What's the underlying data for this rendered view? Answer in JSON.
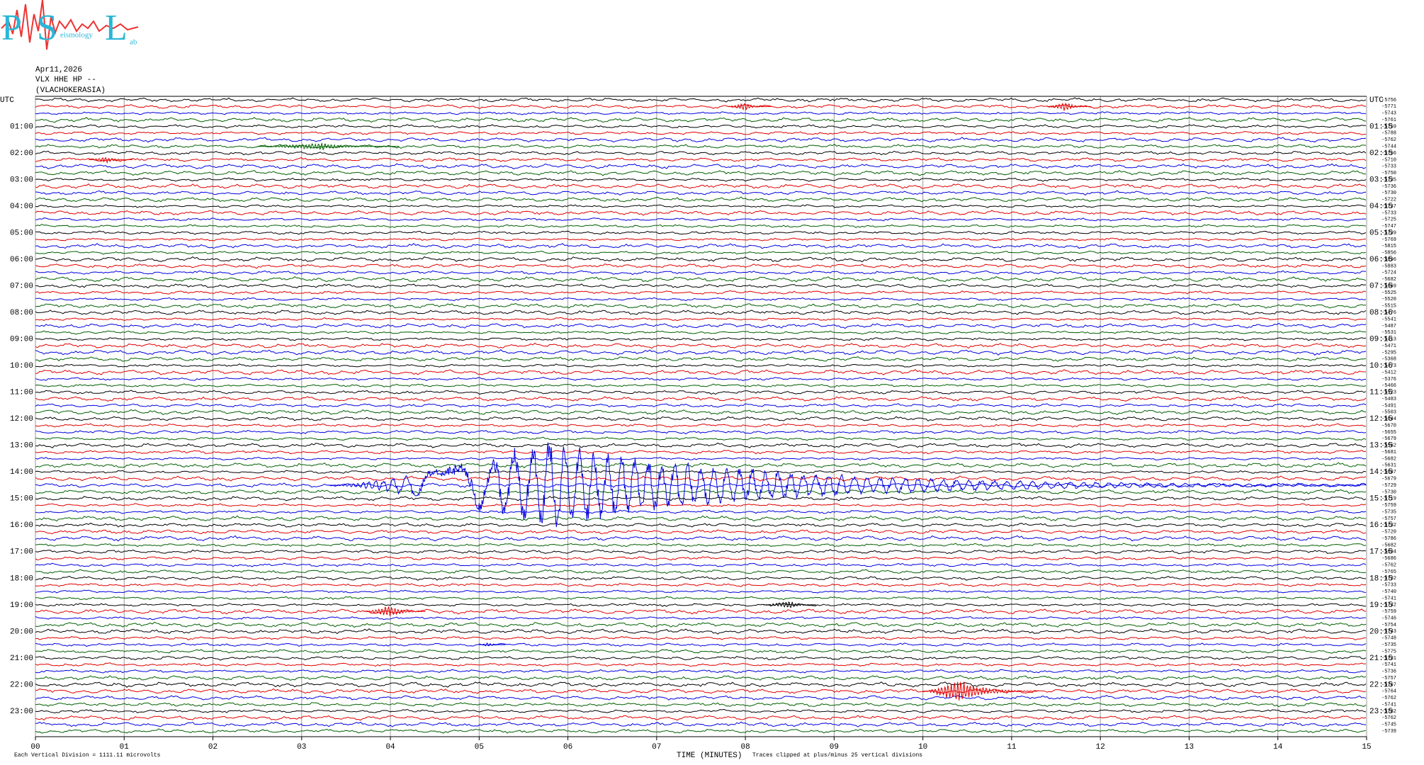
{
  "header": {
    "logo": {
      "p": "P",
      "s": "S",
      "l": "L",
      "seismology": "eismology",
      "lab": "ab"
    },
    "date": "Apr11,2026",
    "channel": "VLX HHE HP --",
    "station": "(VLACHOKERASIA)"
  },
  "chart_data": {
    "type": "helicorder",
    "xlabel": "TIME (MINUTES)",
    "scale_note": "Each Vertical Division = 1111.11 microvolts",
    "clip_note": "Traces clipped at plus/minus 25 vertical divisions",
    "xlim": [
      0,
      15
    ],
    "xticks": [
      {
        "value": 0,
        "label": "00"
      },
      {
        "value": 1,
        "label": "01"
      },
      {
        "value": 2,
        "label": "02"
      },
      {
        "value": 3,
        "label": "03"
      },
      {
        "value": 4,
        "label": "04"
      },
      {
        "value": 5,
        "label": "05"
      },
      {
        "value": 6,
        "label": "06"
      },
      {
        "value": 7,
        "label": "07"
      },
      {
        "value": 8,
        "label": "08"
      },
      {
        "value": 9,
        "label": "09"
      },
      10,
      11,
      12,
      13,
      14,
      15
    ],
    "colors": [
      "#000000",
      "#e00000",
      "#0000e0",
      "#006000"
    ],
    "left_labels": [
      "UTC",
      "01:00",
      "02:00",
      "03:00",
      "04:00",
      "05:00",
      "06:00",
      "07:00",
      "08:00",
      "09:00",
      "10:00",
      "11:00",
      "12:00",
      "13:00",
      "14:00",
      "15:00",
      "16:00",
      "17:00",
      "18:00",
      "19:00",
      "20:00",
      "21:00",
      "22:00",
      "23:00"
    ],
    "right_labels": [
      "UTC",
      "01:15",
      "02:15",
      "03:15",
      "04:15",
      "05:15",
      "06:15",
      "07:15",
      "08:15",
      "09:15",
      "10:15",
      "11:15",
      "12:15",
      "13:15",
      "14:15",
      "15:15",
      "16:15",
      "17:15",
      "18:15",
      "19:15",
      "20:15",
      "21:15",
      "22:15",
      "23:15"
    ],
    "trace_offsets": [
      -5756,
      -5771,
      -5743,
      -5761,
      -5759,
      -5788,
      -5762,
      -5744,
      -5756,
      -5710,
      -5733,
      -5750,
      -5735,
      -5736,
      -5730,
      -5722,
      -5737,
      -5733,
      -5725,
      -5747,
      -5739,
      -5769,
      -5815,
      -5856,
      -5896,
      -5883,
      -5724,
      -5682,
      -5669,
      -5525,
      -5520,
      -5515,
      -5476,
      -5541,
      -5487,
      -5531,
      -5413,
      -5471,
      -5295,
      -5368,
      -5473,
      -5412,
      -5376,
      -5466,
      -5523,
      -5483,
      -5491,
      -5503,
      -5644,
      -5670,
      -5655,
      -5679,
      -5562,
      -5681,
      -5682,
      -5631,
      -5687,
      -5679,
      -5729,
      -5730,
      -5719,
      -5759,
      -5735,
      -5757,
      -5732,
      -5720,
      -5786,
      -5682,
      -5694,
      -5686,
      -5762,
      -5765,
      -5732,
      -5733,
      -5740,
      -5741,
      -5742,
      -5759,
      -5746,
      -5754,
      -5743,
      -5748,
      -5735,
      -5775,
      -5731,
      -5741,
      -5736,
      -5757,
      -5767,
      -5764,
      -5762,
      -5741,
      -5782,
      -5762,
      -5745,
      -5739
    ],
    "events": [
      {
        "trace": 1,
        "start": 7.8,
        "peak": 8.0,
        "end": 8.3,
        "amplitude": 0.6
      },
      {
        "trace": 1,
        "start": 11.4,
        "peak": 11.6,
        "end": 11.9,
        "amplitude": 0.8
      },
      {
        "trace": 7,
        "start": 2.5,
        "peak": 3.2,
        "end": 4.1,
        "amplitude": 0.6
      },
      {
        "trace": 9,
        "start": 0.6,
        "peak": 0.8,
        "end": 1.1,
        "amplitude": 0.5
      },
      {
        "trace": 58,
        "start": 3.3,
        "peak": 5.7,
        "end": 15,
        "amplitude": 7
      },
      {
        "trace": 76,
        "start": 8.2,
        "peak": 8.5,
        "end": 8.8,
        "amplitude": 0.7
      },
      {
        "trace": 77,
        "start": 3.7,
        "peak": 4.0,
        "end": 4.4,
        "amplitude": 1
      },
      {
        "trace": 82,
        "start": 5.0,
        "peak": 5.1,
        "end": 5.3,
        "amplitude": 0.4
      },
      {
        "trace": 89,
        "start": 10.0,
        "peak": 10.4,
        "end": 11.3,
        "amplitude": 2
      }
    ]
  }
}
